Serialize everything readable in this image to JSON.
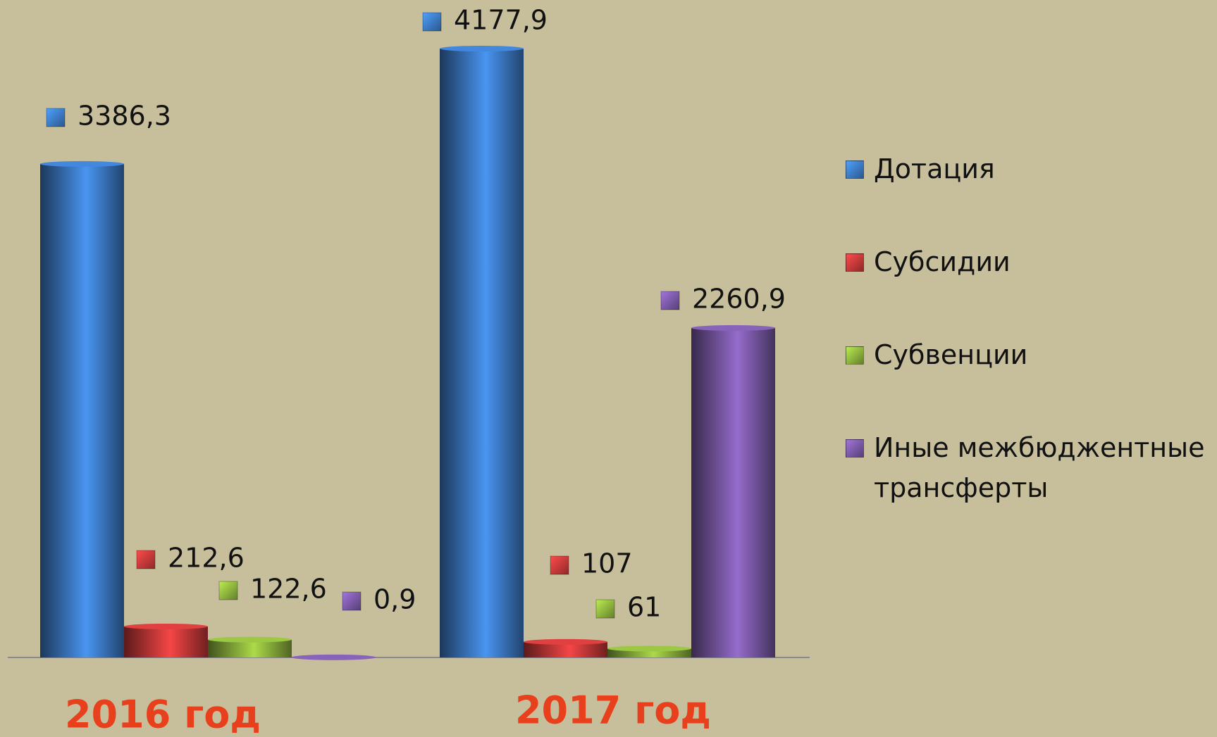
{
  "chart_data": {
    "type": "bar",
    "categories": [
      "2016 год",
      "2017 год"
    ],
    "series": [
      {
        "name": "Дотация",
        "color": "#3d7cc9",
        "values": [
          3386.3,
          4177.9
        ],
        "value_labels": [
          "3386,3",
          "4177,9"
        ]
      },
      {
        "name": "Субсидии",
        "color": "#cc3a3a",
        "values": [
          212.6,
          107
        ],
        "value_labels": [
          "212,6",
          "107"
        ]
      },
      {
        "name": "Субвенции",
        "color": "#8fb63e",
        "values": [
          122.6,
          61
        ],
        "value_labels": [
          "122,6",
          "61"
        ]
      },
      {
        "name": "Иные межбюджентные трансферты",
        "color": "#7c5aa9",
        "values": [
          0.9,
          2260.9
        ],
        "value_labels": [
          "0,9",
          "2260,9"
        ]
      }
    ],
    "legend": "right"
  }
}
